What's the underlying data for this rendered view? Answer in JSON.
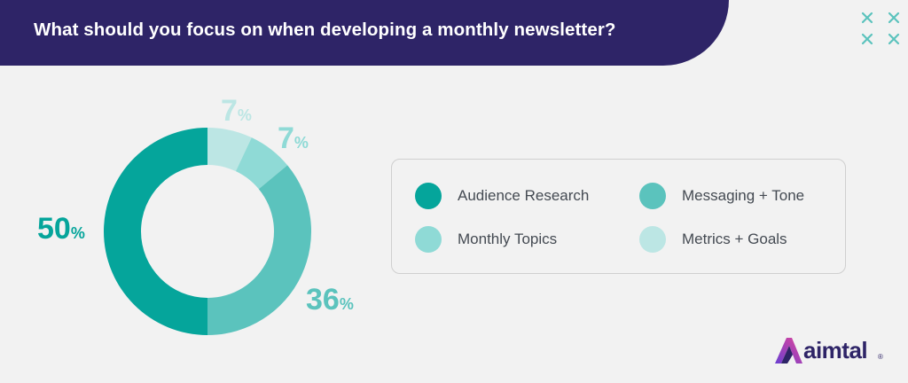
{
  "header": {
    "title": "What should you focus on when developing a monthly newsletter?"
  },
  "chart_data": {
    "type": "pie",
    "title": "What should you focus on when developing a monthly newsletter?",
    "donut": true,
    "categories": [
      "Audience Research",
      "Messaging + Tone",
      "Monthly Topics",
      "Metrics + Goals"
    ],
    "values": [
      50,
      36,
      7,
      7
    ],
    "value_labels": [
      "50",
      "36",
      "7",
      "7"
    ],
    "percent_symbol": "%",
    "colors": [
      "#05a59b",
      "#5bc3bd",
      "#8fdad6",
      "#bce6e4"
    ],
    "legend_position": "right"
  },
  "branding": {
    "logo_text": "aimtal",
    "logo_registered": "®",
    "logo_icon": "aimtal-a-logo-icon",
    "decor_icon": "cross-pattern-icon",
    "colors": {
      "banner": "#2e2467",
      "background": "#f2f2f2"
    }
  }
}
